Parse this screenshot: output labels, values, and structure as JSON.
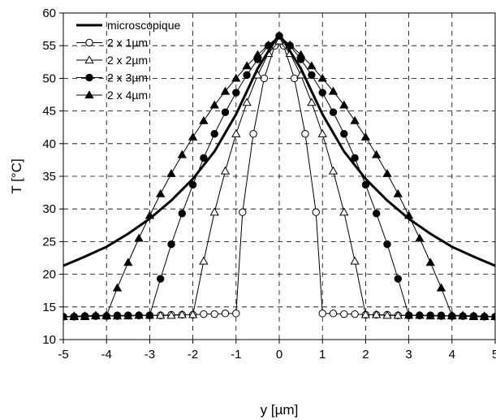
{
  "chart_data": {
    "type": "line",
    "xlabel": "y [µm]",
    "ylabel": "T [°C]",
    "xlim": [
      -5,
      5
    ],
    "ylim": [
      10,
      60
    ],
    "xticks": [
      "-5",
      "-4",
      "-3",
      "-2",
      "-1",
      "0",
      "1",
      "2",
      "3",
      "4",
      "5"
    ],
    "yticks": [
      "10",
      "15",
      "20",
      "25",
      "30",
      "35",
      "40",
      "45",
      "50",
      "55",
      "60"
    ],
    "grid": true,
    "legend_position": "top-left",
    "series": [
      {
        "name": "microscopique",
        "marker": "none",
        "line_width": 3,
        "points": [
          [
            -5,
            21.3
          ],
          [
            -4.5,
            22.7
          ],
          [
            -4,
            24.2
          ],
          [
            -3.5,
            26.2
          ],
          [
            -3,
            28.5
          ],
          [
            -2.5,
            31.3
          ],
          [
            -2,
            34.6
          ],
          [
            -1.5,
            38.8
          ],
          [
            -1,
            44.5
          ],
          [
            -0.5,
            51.5
          ],
          [
            0,
            56.8
          ],
          [
            0.5,
            51.5
          ],
          [
            1,
            44.5
          ],
          [
            1.5,
            38.8
          ],
          [
            2,
            34.6
          ],
          [
            2.5,
            31.3
          ],
          [
            3,
            28.5
          ],
          [
            3.5,
            26.2
          ],
          [
            4,
            24.2
          ],
          [
            4.5,
            22.7
          ],
          [
            5,
            21.3
          ]
        ]
      },
      {
        "name": "2 x 1µm",
        "marker": "open-circle",
        "points": [
          [
            -5,
            13.5
          ],
          [
            -4.75,
            13.5
          ],
          [
            -4.5,
            13.6
          ],
          [
            -4.25,
            13.6
          ],
          [
            -4,
            13.6
          ],
          [
            -3.75,
            13.6
          ],
          [
            -3.5,
            13.7
          ],
          [
            -3.25,
            13.7
          ],
          [
            -3,
            13.7
          ],
          [
            -2.75,
            13.7
          ],
          [
            -2.5,
            13.8
          ],
          [
            -2.25,
            13.8
          ],
          [
            -2,
            13.8
          ],
          [
            -1.75,
            13.9
          ],
          [
            -1.5,
            13.9
          ],
          [
            -1.25,
            14
          ],
          [
            -1,
            14
          ],
          [
            -0.85,
            29.5
          ],
          [
            -0.6,
            41.5
          ],
          [
            -0.35,
            50
          ],
          [
            -0.1,
            55
          ],
          [
            0,
            56.5
          ],
          [
            0.1,
            55
          ],
          [
            0.35,
            50
          ],
          [
            0.6,
            41.5
          ],
          [
            0.85,
            29.5
          ],
          [
            1,
            14
          ],
          [
            1.25,
            14
          ],
          [
            1.5,
            13.9
          ],
          [
            1.75,
            13.9
          ],
          [
            2,
            13.8
          ],
          [
            2.25,
            13.8
          ],
          [
            2.5,
            13.8
          ],
          [
            2.75,
            13.7
          ],
          [
            3,
            13.7
          ],
          [
            3.25,
            13.7
          ],
          [
            3.5,
            13.7
          ],
          [
            3.75,
            13.6
          ],
          [
            4,
            13.6
          ],
          [
            4.25,
            13.6
          ],
          [
            4.5,
            13.6
          ],
          [
            4.75,
            13.5
          ],
          [
            5,
            13.5
          ]
        ]
      },
      {
        "name": "2 x 2µm",
        "marker": "open-triangle",
        "points": [
          [
            -5,
            13.5
          ],
          [
            -4.75,
            13.5
          ],
          [
            -4.5,
            13.5
          ],
          [
            -4.25,
            13.6
          ],
          [
            -4,
            13.6
          ],
          [
            -3.75,
            13.6
          ],
          [
            -3.5,
            13.6
          ],
          [
            -3.25,
            13.7
          ],
          [
            -3,
            13.7
          ],
          [
            -2.75,
            13.7
          ],
          [
            -2.5,
            13.7
          ],
          [
            -2.25,
            13.8
          ],
          [
            -2,
            13.8
          ],
          [
            -1.75,
            22
          ],
          [
            -1.5,
            29.5
          ],
          [
            -1.25,
            35.8
          ],
          [
            -1,
            41.5
          ],
          [
            -0.75,
            46.3
          ],
          [
            -0.5,
            50.5
          ],
          [
            -0.25,
            53.8
          ],
          [
            0,
            55.7
          ],
          [
            0.25,
            53.8
          ],
          [
            0.5,
            50.5
          ],
          [
            0.75,
            46.3
          ],
          [
            1,
            41.5
          ],
          [
            1.25,
            35.8
          ],
          [
            1.5,
            29.5
          ],
          [
            1.75,
            22
          ],
          [
            2,
            13.8
          ],
          [
            2.25,
            13.8
          ],
          [
            2.5,
            13.7
          ],
          [
            2.75,
            13.7
          ],
          [
            3,
            13.7
          ],
          [
            3.25,
            13.7
          ],
          [
            3.5,
            13.6
          ],
          [
            3.75,
            13.6
          ],
          [
            4,
            13.6
          ],
          [
            4.25,
            13.6
          ],
          [
            4.5,
            13.5
          ],
          [
            4.75,
            13.5
          ],
          [
            5,
            13.5
          ]
        ]
      },
      {
        "name": "2 x 3µm",
        "marker": "filled-circle",
        "points": [
          [
            -5,
            13.5
          ],
          [
            -4.75,
            13.5
          ],
          [
            -4.5,
            13.6
          ],
          [
            -4.25,
            13.6
          ],
          [
            -4,
            13.6
          ],
          [
            -3.75,
            13.7
          ],
          [
            -3.5,
            13.7
          ],
          [
            -3.25,
            13.7
          ],
          [
            -3,
            13.7
          ],
          [
            -2.75,
            19.3
          ],
          [
            -2.5,
            24.6
          ],
          [
            -2.25,
            29.3
          ],
          [
            -2,
            33.7
          ],
          [
            -1.75,
            37.8
          ],
          [
            -1.5,
            41.5
          ],
          [
            -1.25,
            44.8
          ],
          [
            -1,
            47.8
          ],
          [
            -0.75,
            50.5
          ],
          [
            -0.5,
            52.9
          ],
          [
            -0.25,
            55
          ],
          [
            0,
            56.5
          ],
          [
            0.25,
            55
          ],
          [
            0.5,
            52.9
          ],
          [
            0.75,
            50.5
          ],
          [
            1,
            47.8
          ],
          [
            1.25,
            44.8
          ],
          [
            1.5,
            41.5
          ],
          [
            1.75,
            37.8
          ],
          [
            2,
            33.7
          ],
          [
            2.25,
            29.3
          ],
          [
            2.5,
            24.6
          ],
          [
            2.75,
            19.3
          ],
          [
            3,
            13.7
          ],
          [
            3.25,
            13.7
          ],
          [
            3.5,
            13.7
          ],
          [
            3.75,
            13.7
          ],
          [
            4,
            13.6
          ],
          [
            4.25,
            13.6
          ],
          [
            4.5,
            13.6
          ],
          [
            4.75,
            13.5
          ],
          [
            5,
            13.5
          ]
        ]
      },
      {
        "name": "2 x 4µm",
        "marker": "filled-triangle",
        "points": [
          [
            -5,
            13.5
          ],
          [
            -4.75,
            13.6
          ],
          [
            -4.5,
            13.6
          ],
          [
            -4.25,
            13.7
          ],
          [
            -4,
            13.7
          ],
          [
            -3.75,
            17.9
          ],
          [
            -3.5,
            21.8
          ],
          [
            -3.25,
            25.5
          ],
          [
            -3,
            29
          ],
          [
            -2.75,
            32.3
          ],
          [
            -2.5,
            35.4
          ],
          [
            -2.25,
            38.3
          ],
          [
            -2,
            41
          ],
          [
            -1.75,
            43.5
          ],
          [
            -1.5,
            45.9
          ],
          [
            -1.25,
            48
          ],
          [
            -1,
            50
          ],
          [
            -0.75,
            51.9
          ],
          [
            -0.5,
            53.6
          ],
          [
            -0.25,
            55.1
          ],
          [
            0,
            56.5
          ],
          [
            0.25,
            55.1
          ],
          [
            0.5,
            53.6
          ],
          [
            0.75,
            51.9
          ],
          [
            1,
            50
          ],
          [
            1.25,
            48
          ],
          [
            1.5,
            45.9
          ],
          [
            1.75,
            43.5
          ],
          [
            2,
            41
          ],
          [
            2.25,
            38.3
          ],
          [
            2.5,
            35.4
          ],
          [
            2.75,
            32.3
          ],
          [
            3,
            29
          ],
          [
            3.25,
            25.5
          ],
          [
            3.5,
            21.8
          ],
          [
            3.75,
            17.9
          ],
          [
            4,
            13.7
          ],
          [
            4.25,
            13.7
          ],
          [
            4.5,
            13.6
          ],
          [
            4.75,
            13.6
          ],
          [
            5,
            13.5
          ]
        ]
      }
    ]
  }
}
